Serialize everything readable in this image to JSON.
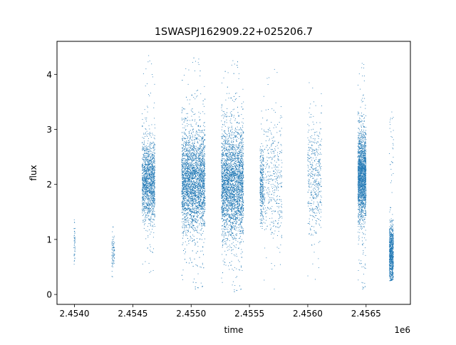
{
  "chart_data": {
    "type": "scatter",
    "title": "1SWASPJ162909.22+025206.7",
    "xlabel": "time",
    "ylabel": "flux",
    "x_offset_label": "1e6",
    "xlim": [
      2453850,
      2456880
    ],
    "ylim": [
      -0.18,
      4.6
    ],
    "x_ticks": [
      {
        "value": 2454000,
        "label": "2.4540"
      },
      {
        "value": 2454500,
        "label": "2.4545"
      },
      {
        "value": 2455000,
        "label": "2.4550"
      },
      {
        "value": 2455500,
        "label": "2.4555"
      },
      {
        "value": 2456000,
        "label": "2.4560"
      },
      {
        "value": 2456500,
        "label": "2.4565"
      }
    ],
    "y_ticks": [
      {
        "value": 0,
        "label": "0"
      },
      {
        "value": 1,
        "label": "1"
      },
      {
        "value": 2,
        "label": "2"
      },
      {
        "value": 3,
        "label": "3"
      },
      {
        "value": 4,
        "label": "4"
      }
    ],
    "grid": false,
    "marker_color": "#1f77b4",
    "series": [
      {
        "name": "",
        "clusters": [
          {
            "x_start": 2453995,
            "x_end": 2454005,
            "y_center": 0.95,
            "y_sd": 0.22,
            "y_min": 0.25,
            "y_max": 1.4,
            "count": 45
          },
          {
            "x_start": 2454320,
            "x_end": 2454345,
            "y_center": 0.78,
            "y_sd": 0.15,
            "y_min": 0.2,
            "y_max": 1.35,
            "count": 80
          },
          {
            "x_start": 2454580,
            "x_end": 2454690,
            "y_center": 2.05,
            "y_sd": 0.35,
            "y_min": 0.35,
            "y_max": 4.35,
            "count": 1500
          },
          {
            "x_start": 2454920,
            "x_end": 2455120,
            "y_center": 2.05,
            "y_sd": 0.45,
            "y_min": 0.05,
            "y_max": 4.35,
            "count": 3500
          },
          {
            "x_start": 2455260,
            "x_end": 2455450,
            "y_center": 2.0,
            "y_sd": 0.5,
            "y_min": 0.0,
            "y_max": 4.3,
            "count": 3500
          },
          {
            "x_start": 2455590,
            "x_end": 2455620,
            "y_center": 2.0,
            "y_sd": 0.35,
            "y_min": 1.2,
            "y_max": 3.4,
            "count": 300
          },
          {
            "x_start": 2455620,
            "x_end": 2455780,
            "y_center": 2.0,
            "y_sd": 0.55,
            "y_min": 0.05,
            "y_max": 4.2,
            "count": 400
          },
          {
            "x_start": 2456000,
            "x_end": 2456120,
            "y_center": 2.1,
            "y_sd": 0.5,
            "y_min": 0.05,
            "y_max": 4.2,
            "count": 450
          },
          {
            "x_start": 2456430,
            "x_end": 2456500,
            "y_center": 2.15,
            "y_sd": 0.4,
            "y_min": 0.05,
            "y_max": 4.25,
            "count": 2000
          },
          {
            "x_start": 2456700,
            "x_end": 2456735,
            "y_center": 0.75,
            "y_sd": 0.25,
            "y_min": 0.25,
            "y_max": 3.4,
            "count": 800
          }
        ]
      }
    ]
  }
}
